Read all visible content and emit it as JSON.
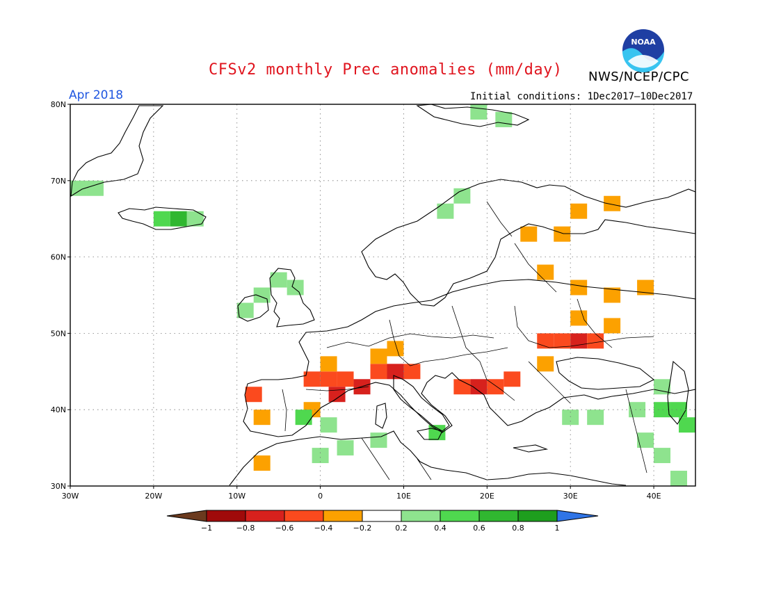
{
  "title": "CFSv2 monthly Prec anomalies (mm/day)",
  "agency": "NWS/NCEP/CPC",
  "logo_text": "NOAA",
  "month_label": "Apr 2018",
  "init_label": "Initial conditions: 1Dec2017–10Dec2017",
  "colors": {
    "title": "#e0141e",
    "month": "#1f56e0",
    "dry": [
      "#6b3a1e",
      "#a00a0a",
      "#d7211d",
      "#fb4a1e",
      "#fca100"
    ],
    "wet": [
      "#8ee38e",
      "#4fd84f",
      "#30b730",
      "#1e9e1e",
      "#2f74e6"
    ]
  },
  "lat_labels": [
    "80N",
    "70N",
    "60N",
    "50N",
    "40N",
    "30N"
  ],
  "lon_labels": [
    "30W",
    "20W",
    "10W",
    "0",
    "10E",
    "20E",
    "30E",
    "40E"
  ],
  "legend": {
    "tick_labels": [
      "−1",
      "−0.8",
      "−0.6",
      "−0.4",
      "−0.2",
      "0.2",
      "0.4",
      "0.6",
      "0.8",
      "1"
    ],
    "bins": [
      {
        "color": "#a00a0a"
      },
      {
        "color": "#d7211d"
      },
      {
        "color": "#fb4a1e"
      },
      {
        "color": "#fca100"
      },
      {
        "color": "#ffffff"
      },
      {
        "color": "#8ee38e"
      },
      {
        "color": "#4fd84f"
      },
      {
        "color": "#30b730"
      },
      {
        "color": "#1e9e1e"
      }
    ],
    "low_arrow_color": "#6b3a1e",
    "high_arrow_color": "#2f74e6"
  },
  "chart_data": {
    "type": "heatmap",
    "title": "CFSv2 monthly Prec anomalies (mm/day)",
    "subtitle": "Apr 2018",
    "xlabel": "",
    "ylabel": "",
    "xlim": [
      -30,
      45
    ],
    "ylim": [
      30,
      80
    ],
    "grid": true,
    "legend": "bottom colorbar",
    "cells": [
      {
        "lon": -29,
        "lat": 69,
        "v": 0.3
      },
      {
        "lon": -27,
        "lat": 69,
        "v": 0.3
      },
      {
        "lon": -19,
        "lat": 65,
        "v": 0.4
      },
      {
        "lon": -17,
        "lat": 65,
        "v": 0.6
      },
      {
        "lon": -15,
        "lat": 65,
        "v": 0.3
      },
      {
        "lon": -7,
        "lat": 55,
        "v": 0.3
      },
      {
        "lon": -9,
        "lat": 53,
        "v": 0.3
      },
      {
        "lon": -5,
        "lat": 57,
        "v": 0.3
      },
      {
        "lon": -3,
        "lat": 56,
        "v": 0.3
      },
      {
        "lon": 15,
        "lat": 66,
        "v": 0.3
      },
      {
        "lon": 17,
        "lat": 68,
        "v": 0.3
      },
      {
        "lon": 19,
        "lat": 79,
        "v": 0.3
      },
      {
        "lon": 22,
        "lat": 78,
        "v": 0.3
      },
      {
        "lon": 25,
        "lat": 63,
        "v": -0.3
      },
      {
        "lon": 29,
        "lat": 63,
        "v": -0.3
      },
      {
        "lon": 31,
        "lat": 66,
        "v": -0.3
      },
      {
        "lon": 35,
        "lat": 67,
        "v": -0.3
      },
      {
        "lon": 27,
        "lat": 58,
        "v": -0.3
      },
      {
        "lon": 31,
        "lat": 56,
        "v": -0.3
      },
      {
        "lon": 35,
        "lat": 55,
        "v": -0.3
      },
      {
        "lon": 39,
        "lat": 56,
        "v": -0.3
      },
      {
        "lon": 31,
        "lat": 52,
        "v": -0.3
      },
      {
        "lon": 35,
        "lat": 51,
        "v": -0.3
      },
      {
        "lon": 29,
        "lat": 49,
        "v": -0.5
      },
      {
        "lon": 31,
        "lat": 49,
        "v": -0.7
      },
      {
        "lon": 33,
        "lat": 49,
        "v": -0.5
      },
      {
        "lon": 27,
        "lat": 49,
        "v": -0.5
      },
      {
        "lon": 27,
        "lat": 46,
        "v": -0.3
      },
      {
        "lon": 23,
        "lat": 44,
        "v": -0.5
      },
      {
        "lon": 21,
        "lat": 43,
        "v": -0.5
      },
      {
        "lon": 19,
        "lat": 43,
        "v": -0.7
      },
      {
        "lon": 17,
        "lat": 43,
        "v": -0.5
      },
      {
        "lon": 11,
        "lat": 45,
        "v": -0.5
      },
      {
        "lon": 9,
        "lat": 45,
        "v": -0.7
      },
      {
        "lon": 7,
        "lat": 45,
        "v": -0.5
      },
      {
        "lon": 3,
        "lat": 44,
        "v": -0.5
      },
      {
        "lon": 1,
        "lat": 44,
        "v": -0.5
      },
      {
        "lon": -1,
        "lat": 44,
        "v": -0.5
      },
      {
        "lon": 5,
        "lat": 43,
        "v": -0.7
      },
      {
        "lon": 2,
        "lat": 42,
        "v": -0.7
      },
      {
        "lon": 7,
        "lat": 47,
        "v": -0.3
      },
      {
        "lon": 9,
        "lat": 48,
        "v": -0.3
      },
      {
        "lon": 1,
        "lat": 46,
        "v": -0.3
      },
      {
        "lon": -1,
        "lat": 40,
        "v": -0.3
      },
      {
        "lon": -7,
        "lat": 39,
        "v": -0.3
      },
      {
        "lon": -8,
        "lat": 42,
        "v": -0.5
      },
      {
        "lon": -7,
        "lat": 33,
        "v": -0.3
      },
      {
        "lon": -2,
        "lat": 39,
        "v": 0.5
      },
      {
        "lon": 1,
        "lat": 38,
        "v": 0.3
      },
      {
        "lon": 3,
        "lat": 35,
        "v": 0.3
      },
      {
        "lon": 0,
        "lat": 34,
        "v": 0.3
      },
      {
        "lon": 7,
        "lat": 36,
        "v": 0.3
      },
      {
        "lon": 14,
        "lat": 37,
        "v": 0.4
      },
      {
        "lon": 33,
        "lat": 39,
        "v": 0.3
      },
      {
        "lon": 38,
        "lat": 40,
        "v": 0.3
      },
      {
        "lon": 41,
        "lat": 40,
        "v": 0.4
      },
      {
        "lon": 43,
        "lat": 40,
        "v": 0.5
      },
      {
        "lon": 44,
        "lat": 38,
        "v": 0.4
      },
      {
        "lon": 41,
        "lat": 43,
        "v": 0.3
      },
      {
        "lon": 30,
        "lat": 39,
        "v": 0.3
      },
      {
        "lon": 39,
        "lat": 36,
        "v": 0.3
      },
      {
        "lon": 41,
        "lat": 34,
        "v": 0.3
      },
      {
        "lon": 43,
        "lat": 31,
        "v": 0.3
      }
    ]
  }
}
